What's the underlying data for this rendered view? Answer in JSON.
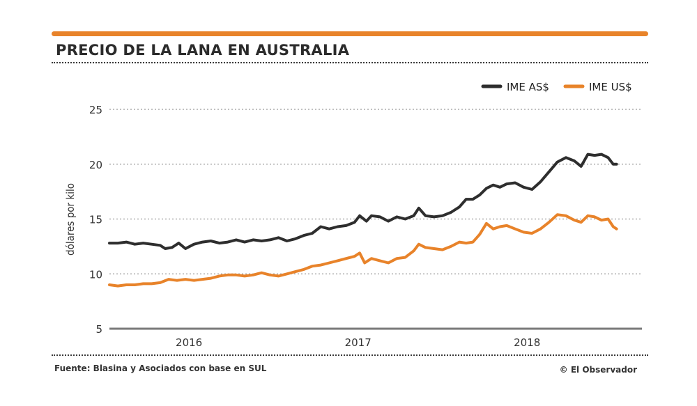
{
  "header": {
    "title": "PRECIO DE LA LANA EN AUSTRALIA"
  },
  "footer": {
    "source": "Fuente: Blasina y Asociados con base en SUL",
    "credit": "© El Observador"
  },
  "colors": {
    "accent": "#e8832a",
    "series_dark": "#2e2e2e",
    "series_orange": "#e8832a",
    "grid": "#9a9a9a",
    "axis": "#7a7a7a"
  },
  "chart_data": {
    "type": "line",
    "title": "PRECIO DE LA LANA EN AUSTRALIA",
    "xlabel": "",
    "ylabel": "dólares por kilo",
    "ylim": [
      5,
      25
    ],
    "yticks": [
      5,
      10,
      15,
      20,
      25
    ],
    "xlim": [
      2015.55,
      2018.7
    ],
    "xticks": [
      {
        "value": 2016.0,
        "label": "2016"
      },
      {
        "value": 2017.0,
        "label": "2017"
      },
      {
        "value": 2018.0,
        "label": "2018"
      }
    ],
    "grid": "horizontal dotted",
    "legend_position": "top-right",
    "series": [
      {
        "name": "IME AS$",
        "color": "#2e2e2e",
        "points": [
          [
            2015.55,
            12.8
          ],
          [
            2015.6,
            12.8
          ],
          [
            2015.65,
            12.9
          ],
          [
            2015.7,
            12.7
          ],
          [
            2015.75,
            12.8
          ],
          [
            2015.8,
            12.7
          ],
          [
            2015.85,
            12.6
          ],
          [
            2015.88,
            12.3
          ],
          [
            2015.92,
            12.4
          ],
          [
            2015.96,
            12.8
          ],
          [
            2016.0,
            12.3
          ],
          [
            2016.05,
            12.7
          ],
          [
            2016.1,
            12.9
          ],
          [
            2016.15,
            13.0
          ],
          [
            2016.2,
            12.8
          ],
          [
            2016.25,
            12.9
          ],
          [
            2016.3,
            13.1
          ],
          [
            2016.35,
            12.9
          ],
          [
            2016.4,
            13.1
          ],
          [
            2016.45,
            13.0
          ],
          [
            2016.5,
            13.1
          ],
          [
            2016.55,
            13.3
          ],
          [
            2016.6,
            13.0
          ],
          [
            2016.65,
            13.2
          ],
          [
            2016.7,
            13.5
          ],
          [
            2016.75,
            13.7
          ],
          [
            2016.8,
            14.3
          ],
          [
            2016.85,
            14.1
          ],
          [
            2016.9,
            14.3
          ],
          [
            2016.95,
            14.4
          ],
          [
            2017.0,
            14.7
          ],
          [
            2017.03,
            15.3
          ],
          [
            2017.07,
            14.8
          ],
          [
            2017.1,
            15.3
          ],
          [
            2017.15,
            15.2
          ],
          [
            2017.2,
            14.8
          ],
          [
            2017.25,
            15.2
          ],
          [
            2017.3,
            15.0
          ],
          [
            2017.35,
            15.3
          ],
          [
            2017.38,
            16.0
          ],
          [
            2017.42,
            15.3
          ],
          [
            2017.47,
            15.2
          ],
          [
            2017.52,
            15.3
          ],
          [
            2017.57,
            15.6
          ],
          [
            2017.62,
            16.1
          ],
          [
            2017.66,
            16.8
          ],
          [
            2017.7,
            16.8
          ],
          [
            2017.74,
            17.2
          ],
          [
            2017.78,
            17.8
          ],
          [
            2017.82,
            18.1
          ],
          [
            2017.86,
            17.9
          ],
          [
            2017.9,
            18.2
          ],
          [
            2017.95,
            18.3
          ],
          [
            2018.0,
            17.9
          ],
          [
            2018.05,
            17.7
          ],
          [
            2018.1,
            18.4
          ],
          [
            2018.15,
            19.3
          ],
          [
            2018.2,
            20.2
          ],
          [
            2018.25,
            20.6
          ],
          [
            2018.3,
            20.3
          ],
          [
            2018.34,
            19.8
          ],
          [
            2018.38,
            20.9
          ],
          [
            2018.42,
            20.8
          ],
          [
            2018.46,
            20.9
          ],
          [
            2018.5,
            20.6
          ],
          [
            2018.53,
            20.0
          ],
          [
            2018.55,
            20.0
          ]
        ]
      },
      {
        "name": "IME US$",
        "color": "#e8832a",
        "points": [
          [
            2015.55,
            9.0
          ],
          [
            2015.6,
            8.9
          ],
          [
            2015.65,
            9.0
          ],
          [
            2015.7,
            9.0
          ],
          [
            2015.75,
            9.1
          ],
          [
            2015.8,
            9.1
          ],
          [
            2015.85,
            9.2
          ],
          [
            2015.9,
            9.5
          ],
          [
            2015.95,
            9.4
          ],
          [
            2016.0,
            9.5
          ],
          [
            2016.05,
            9.4
          ],
          [
            2016.1,
            9.5
          ],
          [
            2016.15,
            9.6
          ],
          [
            2016.2,
            9.8
          ],
          [
            2016.25,
            9.9
          ],
          [
            2016.3,
            9.9
          ],
          [
            2016.35,
            9.8
          ],
          [
            2016.4,
            9.9
          ],
          [
            2016.45,
            10.1
          ],
          [
            2016.5,
            9.9
          ],
          [
            2016.55,
            9.8
          ],
          [
            2016.6,
            10.0
          ],
          [
            2016.65,
            10.2
          ],
          [
            2016.7,
            10.4
          ],
          [
            2016.75,
            10.7
          ],
          [
            2016.8,
            10.8
          ],
          [
            2016.85,
            11.0
          ],
          [
            2016.9,
            11.2
          ],
          [
            2016.95,
            11.4
          ],
          [
            2017.0,
            11.6
          ],
          [
            2017.03,
            11.9
          ],
          [
            2017.06,
            11.0
          ],
          [
            2017.1,
            11.4
          ],
          [
            2017.15,
            11.2
          ],
          [
            2017.2,
            11.0
          ],
          [
            2017.25,
            11.4
          ],
          [
            2017.3,
            11.5
          ],
          [
            2017.35,
            12.1
          ],
          [
            2017.38,
            12.7
          ],
          [
            2017.42,
            12.4
          ],
          [
            2017.47,
            12.3
          ],
          [
            2017.52,
            12.2
          ],
          [
            2017.57,
            12.5
          ],
          [
            2017.62,
            12.9
          ],
          [
            2017.66,
            12.8
          ],
          [
            2017.7,
            12.9
          ],
          [
            2017.74,
            13.6
          ],
          [
            2017.78,
            14.6
          ],
          [
            2017.82,
            14.1
          ],
          [
            2017.86,
            14.3
          ],
          [
            2017.9,
            14.4
          ],
          [
            2017.95,
            14.1
          ],
          [
            2018.0,
            13.8
          ],
          [
            2018.05,
            13.7
          ],
          [
            2018.1,
            14.1
          ],
          [
            2018.15,
            14.7
          ],
          [
            2018.2,
            15.4
          ],
          [
            2018.25,
            15.3
          ],
          [
            2018.3,
            14.9
          ],
          [
            2018.34,
            14.7
          ],
          [
            2018.38,
            15.3
          ],
          [
            2018.42,
            15.2
          ],
          [
            2018.46,
            14.9
          ],
          [
            2018.5,
            15.0
          ],
          [
            2018.53,
            14.3
          ],
          [
            2018.55,
            14.1
          ]
        ]
      }
    ]
  }
}
